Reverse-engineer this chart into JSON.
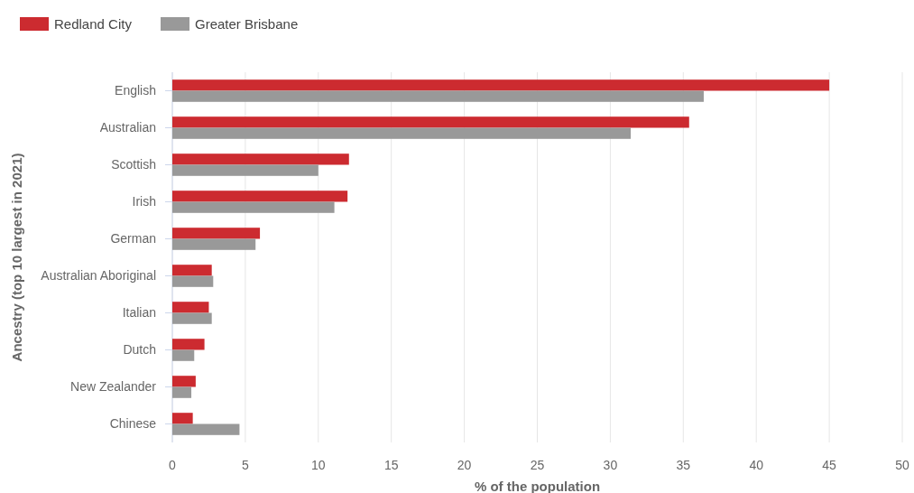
{
  "chart_data": {
    "type": "bar",
    "orientation": "horizontal",
    "xlabel": "% of the population",
    "ylabel": "Ancestry (top 10 largest in 2021)",
    "categories": [
      "English",
      "Australian",
      "Scottish",
      "Irish",
      "German",
      "Australian Aboriginal",
      "Italian",
      "Dutch",
      "New Zealander",
      "Chinese"
    ],
    "series": [
      {
        "name": "Redland City",
        "color": "#cc2b30",
        "values": [
          45.0,
          35.4,
          12.1,
          12.0,
          6.0,
          2.7,
          2.5,
          2.2,
          1.6,
          1.4
        ]
      },
      {
        "name": "Greater Brisbane",
        "color": "#999999",
        "values": [
          36.4,
          31.4,
          10.0,
          11.1,
          5.7,
          2.8,
          2.7,
          1.5,
          1.3,
          4.6
        ]
      }
    ],
    "xlim": [
      0,
      50
    ],
    "xticks": [
      0,
      5,
      10,
      15,
      20,
      25,
      30,
      35,
      40,
      45,
      50
    ],
    "grid": "x",
    "legend": "top left"
  }
}
